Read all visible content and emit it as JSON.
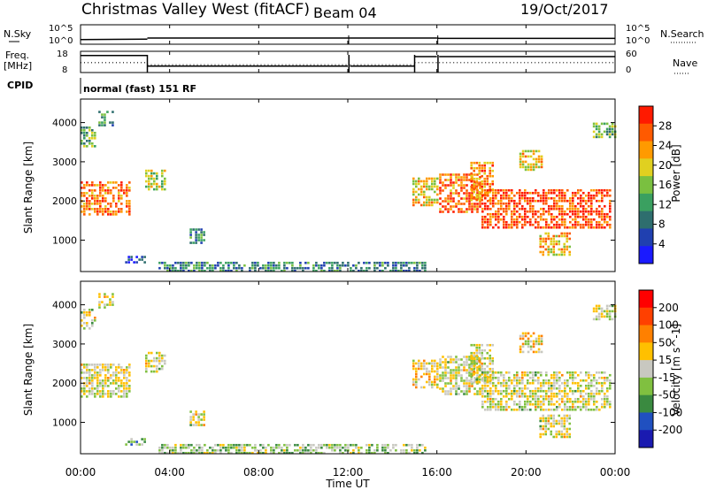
{
  "header": {
    "station": "Christmas Valley West (fitACF)",
    "beam": "Beam 04",
    "date": "19/Oct/2017"
  },
  "left_labels": {
    "nsky": "N.Sky",
    "freq": "Freq.",
    "freq_unit": "[MHz]",
    "cpid": "CPID"
  },
  "right_labels": {
    "nsearch": "N.Search",
    "nave": "Nave"
  },
  "cpid_text": "normal (fast) 151 RF",
  "x_axis": {
    "label": "Time UT",
    "ticks": [
      "00:00",
      "04:00",
      "08:00",
      "12:00",
      "16:00",
      "20:00",
      "00:00"
    ]
  },
  "chart_data": [
    {
      "type": "line",
      "name": "noise",
      "y_left_ticks": [
        "10^5",
        "10^0"
      ],
      "y_right_ticks": [
        "10^5",
        "10^0"
      ],
      "series": [
        {
          "name": "N.Sky",
          "style": "solid",
          "x_hours": [
            0,
            3,
            3,
            12,
            12.1,
            16,
            16.1,
            24
          ],
          "log10_level": [
            1.2,
            1.3,
            1.6,
            1.6,
            1.6,
            1.6,
            1.5,
            1.5
          ]
        }
      ]
    },
    {
      "type": "line",
      "name": "frequency-nave",
      "y_left_ticks": [
        "18",
        "8"
      ],
      "y_right_ticks": [
        "60",
        "0"
      ],
      "series": [
        {
          "name": "Freq",
          "style": "solid",
          "segments": [
            [
              0,
              3,
              16
            ],
            [
              3,
              12,
              11
            ],
            [
              12.1,
              15,
              11
            ],
            [
              15,
              16,
              15.5
            ],
            [
              16.1,
              24,
              15.5
            ]
          ]
        },
        {
          "name": "Nave",
          "style": "dotted",
          "segments": [
            [
              0,
              3,
              28
            ],
            [
              3,
              12,
              22
            ],
            [
              12.1,
              15,
              22
            ],
            [
              15,
              16,
              28
            ],
            [
              16.1,
              24,
              28
            ]
          ]
        }
      ]
    },
    {
      "type": "heatmap",
      "name": "power",
      "ylabel": "Slant Range [km]",
      "yticks": [
        1000,
        2000,
        3000,
        4000
      ],
      "ylim": [
        200,
        4600
      ],
      "xlim_hours": [
        0,
        24
      ],
      "colorbar": {
        "label": "Power [dB]",
        "ticks": [
          "28",
          "24",
          "20",
          "16",
          "12",
          "8",
          "4"
        ],
        "colors": [
          "#1a1aff",
          "#2040b0",
          "#2e6e6e",
          "#3aa060",
          "#7ac040",
          "#e0d020",
          "#ff9a00",
          "#ff5a00",
          "#ff1a00"
        ]
      },
      "regions": [
        {
          "t0": 0.0,
          "t1": 2.2,
          "r0": 1650,
          "r1": 2500,
          "value": 26
        },
        {
          "t0": 0.0,
          "t1": 0.7,
          "r0": 3400,
          "r1": 3900,
          "value": 14
        },
        {
          "t0": 0.8,
          "t1": 1.5,
          "r0": 3900,
          "r1": 4300,
          "value": 12
        },
        {
          "t0": 2.9,
          "t1": 3.8,
          "r0": 2300,
          "r1": 2800,
          "value": 18
        },
        {
          "t0": 4.9,
          "t1": 5.5,
          "r0": 900,
          "r1": 1300,
          "value": 10
        },
        {
          "t0": 2.0,
          "t1": 2.9,
          "r0": 400,
          "r1": 600,
          "value": 6
        },
        {
          "t0": 3.5,
          "t1": 15.5,
          "r0": 200,
          "r1": 450,
          "value": 10
        },
        {
          "t0": 14.9,
          "t1": 16.0,
          "r0": 1900,
          "r1": 2600,
          "value": 20
        },
        {
          "t0": 16.1,
          "t1": 18.0,
          "r0": 1700,
          "r1": 2700,
          "value": 26
        },
        {
          "t0": 17.5,
          "t1": 18.5,
          "r0": 2000,
          "r1": 3000,
          "value": 24
        },
        {
          "t0": 18.0,
          "t1": 23.8,
          "r0": 1300,
          "r1": 2300,
          "value": 28
        },
        {
          "t0": 19.7,
          "t1": 20.7,
          "r0": 2800,
          "r1": 3300,
          "value": 20
        },
        {
          "t0": 20.6,
          "t1": 22.0,
          "r0": 600,
          "r1": 1200,
          "value": 22
        },
        {
          "t0": 23.0,
          "t1": 24.0,
          "r0": 3600,
          "r1": 4000,
          "value": 14
        }
      ]
    },
    {
      "type": "heatmap",
      "name": "velocity",
      "ylabel": "Slant Range [km]",
      "yticks": [
        1000,
        2000,
        3000,
        4000
      ],
      "ylim": [
        200,
        4600
      ],
      "xlim_hours": [
        0,
        24
      ],
      "colorbar": {
        "label": "Velocity [m s^-1]",
        "ticks": [
          "200",
          "100",
          "50",
          "15",
          "-15",
          "-50",
          "-100",
          "-200"
        ],
        "colors": [
          "#1a1ab0",
          "#2050c0",
          "#3a8a40",
          "#80c040",
          "#c8c8c0",
          "#ffc000",
          "#ff8000",
          "#ff4000",
          "#ff0000"
        ]
      },
      "regions": [
        {
          "t0": 0.0,
          "t1": 2.2,
          "r0": 1650,
          "r1": 2500,
          "value": 0
        },
        {
          "t0": 0.0,
          "t1": 0.7,
          "r0": 3400,
          "r1": 3900,
          "value": 0
        },
        {
          "t0": 0.8,
          "t1": 1.5,
          "r0": 3900,
          "r1": 4300,
          "value": 0
        },
        {
          "t0": 2.9,
          "t1": 3.8,
          "r0": 2300,
          "r1": 2800,
          "value": 0
        },
        {
          "t0": 4.9,
          "t1": 5.5,
          "r0": 900,
          "r1": 1300,
          "value": 0
        },
        {
          "t0": 2.0,
          "t1": 2.9,
          "r0": 400,
          "r1": 600,
          "value": -60
        },
        {
          "t0": 3.5,
          "t1": 15.5,
          "r0": 200,
          "r1": 450,
          "value": -40
        },
        {
          "t0": 14.9,
          "t1": 16.0,
          "r0": 1900,
          "r1": 2600,
          "value": 40
        },
        {
          "t0": 16.1,
          "t1": 18.0,
          "r0": 1700,
          "r1": 2700,
          "value": 0
        },
        {
          "t0": 17.5,
          "t1": 18.5,
          "r0": 2000,
          "r1": 3000,
          "value": 0
        },
        {
          "t0": 18.0,
          "t1": 23.8,
          "r0": 1300,
          "r1": 2300,
          "value": 0
        },
        {
          "t0": 19.7,
          "t1": 20.7,
          "r0": 2800,
          "r1": 3300,
          "value": 40
        },
        {
          "t0": 20.6,
          "t1": 22.0,
          "r0": 600,
          "r1": 1200,
          "value": 0
        },
        {
          "t0": 23.0,
          "t1": 24.0,
          "r0": 3600,
          "r1": 4000,
          "value": 0
        }
      ]
    }
  ]
}
